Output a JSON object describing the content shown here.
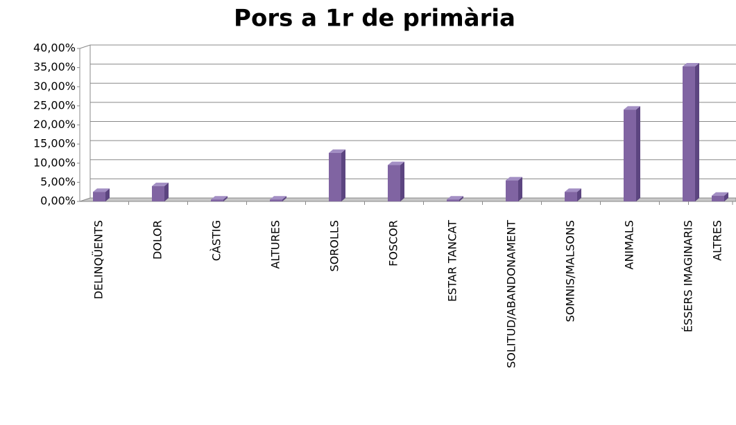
{
  "chart_data": {
    "type": "bar",
    "title": "Pors a 1r de primària",
    "categories": [
      "DELINQÜENTS",
      "DOLOR",
      "CÀSTIG",
      "ALTURES",
      "SOROLLS",
      "FOSCOR",
      "ESTAR TANCAT",
      "SOLITUD/ABANDONAMENT",
      "SOMNIS/MALSONS",
      "ANIMALS",
      "ÉSSERS IMAGINARIS",
      "ALTRES"
    ],
    "values": [
      2.5,
      4,
      0.5,
      0.5,
      12.7,
      9.5,
      0.5,
      5.5,
      2.5,
      24,
      35.3,
      1.5
    ],
    "color": "#8064a2",
    "ylim": [
      0,
      40
    ],
    "yticks": [
      {
        "value": 0,
        "label": "0,00%"
      },
      {
        "value": 5,
        "label": "5,00%"
      },
      {
        "value": 10,
        "label": "10,00%"
      },
      {
        "value": 15,
        "label": "15,00%"
      },
      {
        "value": 20,
        "label": "20,00%"
      },
      {
        "value": 25,
        "label": "25,00%"
      },
      {
        "value": 30,
        "label": "30,00%"
      },
      {
        "value": 35,
        "label": "35,00%"
      },
      {
        "value": 40,
        "label": "40,00%"
      }
    ],
    "grid": true
  }
}
